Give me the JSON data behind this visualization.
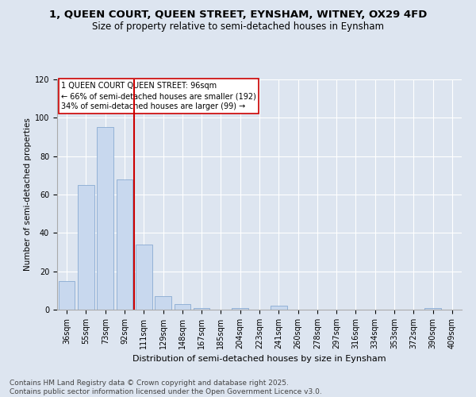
{
  "title": "1, QUEEN COURT, QUEEN STREET, EYNSHAM, WITNEY, OX29 4FD",
  "subtitle": "Size of property relative to semi-detached houses in Eynsham",
  "xlabel": "Distribution of semi-detached houses by size in Eynsham",
  "ylabel": "Number of semi-detached properties",
  "bar_values": [
    15,
    65,
    95,
    68,
    34,
    7,
    3,
    1,
    0,
    1,
    0,
    2,
    0,
    0,
    0,
    0,
    0,
    0,
    0,
    1,
    0
  ],
  "bar_labels": [
    "36sqm",
    "55sqm",
    "73sqm",
    "92sqm",
    "111sqm",
    "129sqm",
    "148sqm",
    "167sqm",
    "185sqm",
    "204sqm",
    "223sqm",
    "241sqm",
    "260sqm",
    "278sqm",
    "297sqm",
    "316sqm",
    "334sqm",
    "353sqm",
    "372sqm",
    "390sqm",
    "409sqm"
  ],
  "bar_color": "#c8d8ee",
  "bar_edge_color": "#7aa0cc",
  "ylim": [
    0,
    120
  ],
  "yticks": [
    0,
    20,
    40,
    60,
    80,
    100,
    120
  ],
  "red_line_x": 3.5,
  "red_line_color": "#cc0000",
  "annotation_title": "1 QUEEN COURT QUEEN STREET: 96sqm",
  "annotation_line1": "← 66% of semi-detached houses are smaller (192)",
  "annotation_line2": "34% of semi-detached houses are larger (99) →",
  "annotation_box_color": "#ffffff",
  "annotation_box_edge_color": "#cc0000",
  "background_color": "#dde5f0",
  "plot_bg_color": "#dde5f0",
  "footer_line1": "Contains HM Land Registry data © Crown copyright and database right 2025.",
  "footer_line2": "Contains public sector information licensed under the Open Government Licence v3.0.",
  "title_fontsize": 9.5,
  "subtitle_fontsize": 8.5,
  "footer_fontsize": 6.5,
  "ylabel_fontsize": 7.5,
  "xlabel_fontsize": 8,
  "tick_fontsize": 7,
  "annotation_fontsize": 7
}
